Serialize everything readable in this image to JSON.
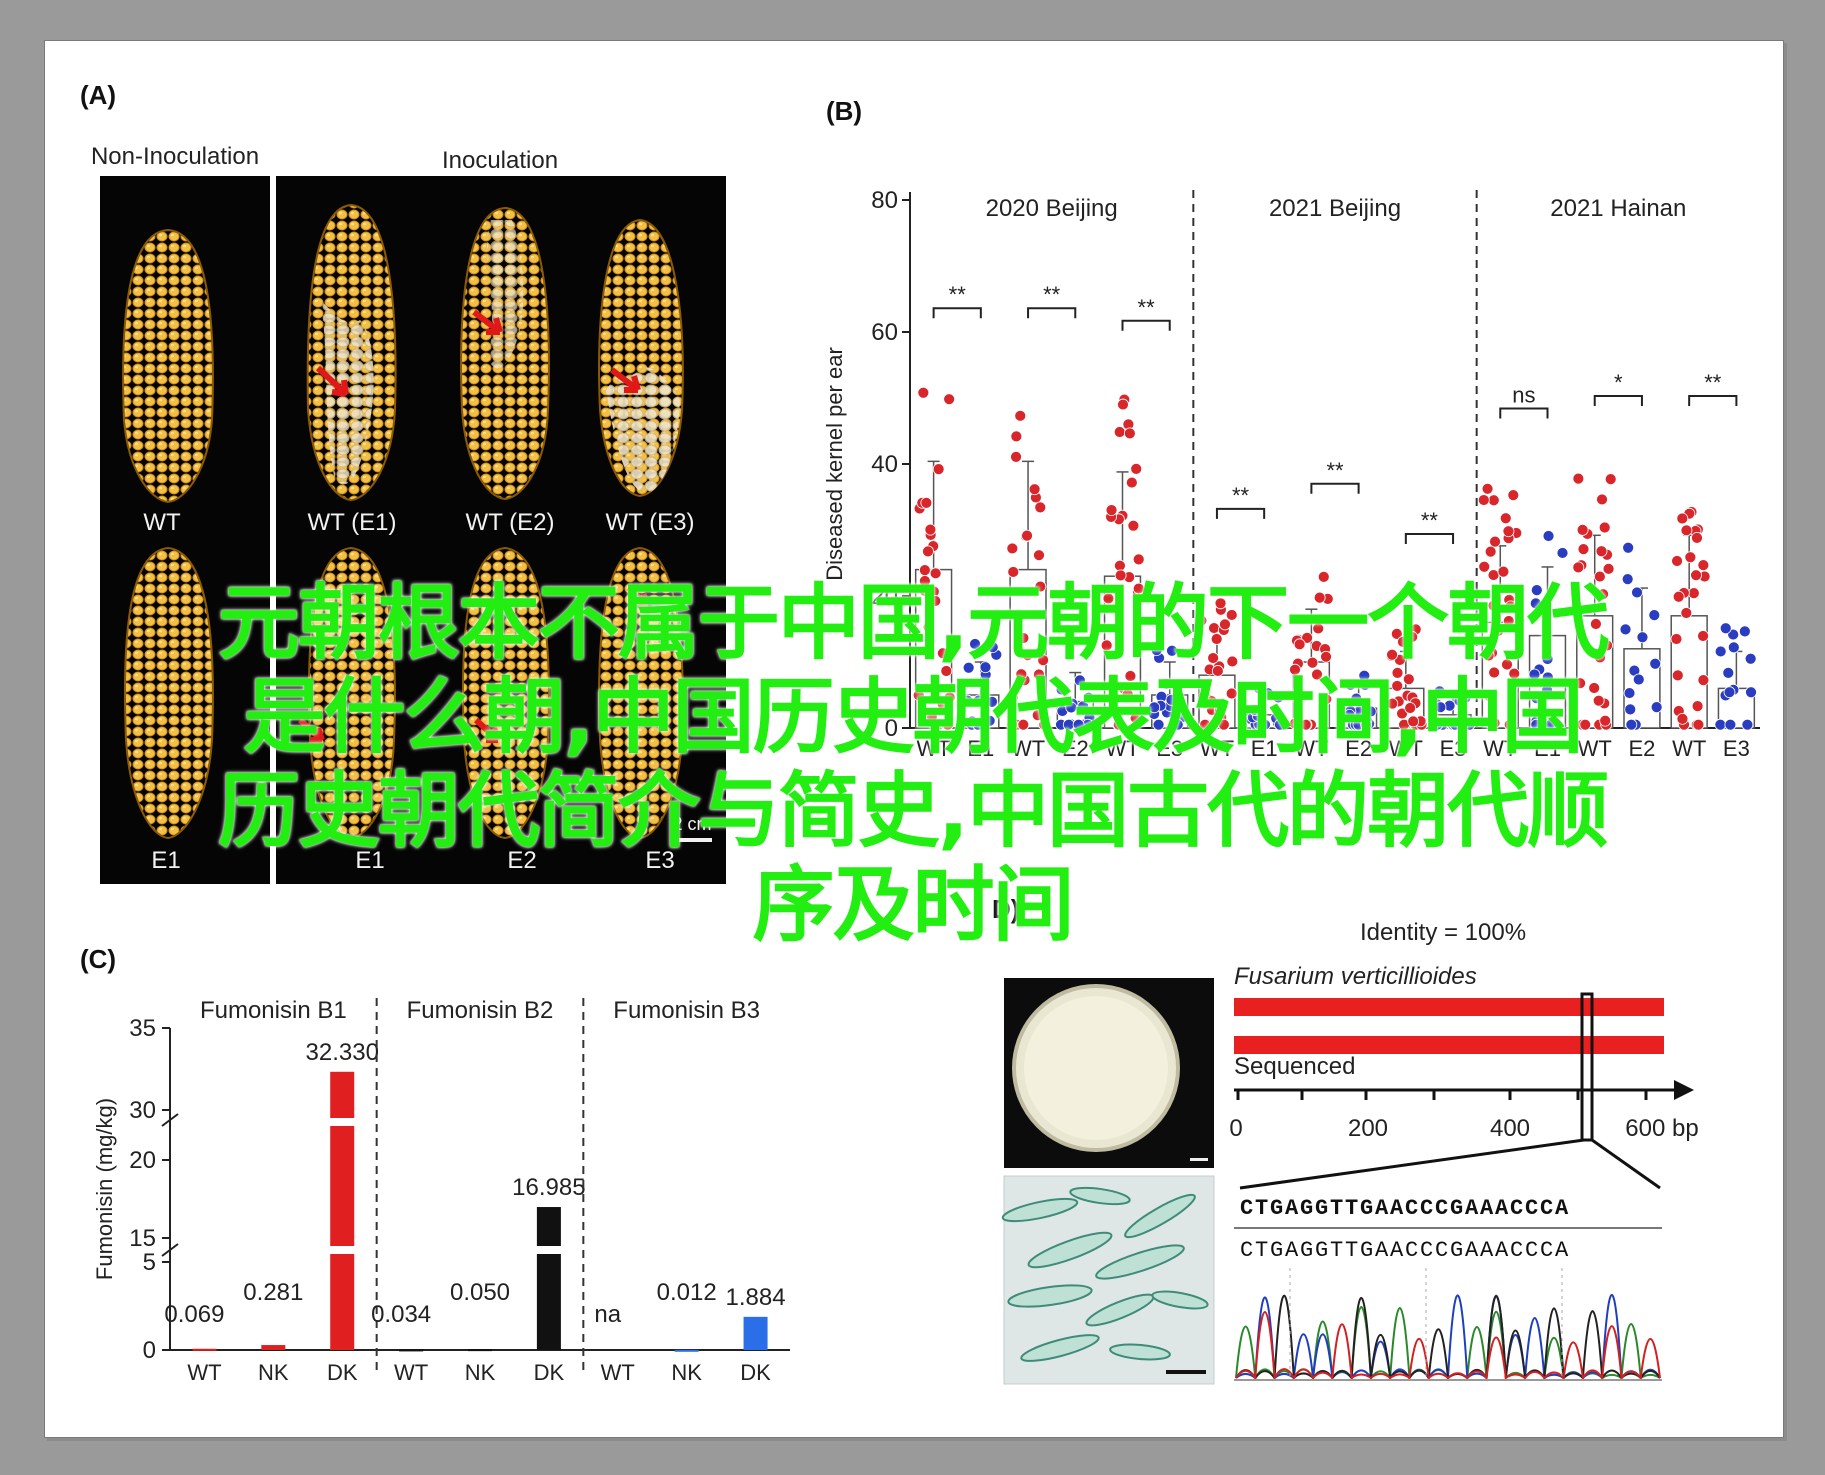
{
  "panels": {
    "a": {
      "label": "(A)",
      "group_left": "Non-Inoculation",
      "group_right": "Inoculation",
      "top_row": [
        "WT",
        "WT (E1)",
        "WT (E2)",
        "WT (E3)"
      ],
      "bottom_row": [
        "E1",
        "E1",
        "E2",
        "E3"
      ],
      "scale_bar": "2 cm"
    },
    "b": {
      "label": "(B)"
    },
    "c": {
      "label": "(C)"
    },
    "d": {
      "label": "D)",
      "identity": "Identity = 100%",
      "species": "Fusarium verticillioides",
      "sequenced": "Sequenced",
      "axis_ticks": [
        "0",
        "200",
        "400",
        "600 bp"
      ],
      "seq1": "CTGAGGTTGAACCCGAAACCCA",
      "seq2": "CTGAGGTTGAACCCGAAACCCA",
      "chromatogram_colors": [
        "#2a8a2a",
        "#1f3fbf",
        "#222222",
        "#d42020"
      ]
    }
  },
  "chart_data": [
    {
      "type": "bar",
      "ylabel": "Diseased kernel per ear",
      "ylim": [
        0,
        80
      ],
      "yticks": [
        "0",
        "20",
        "40",
        "60",
        "80"
      ],
      "groups": [
        {
          "name": "2020 Beijing",
          "categories": [
            "WT",
            "E1",
            "WT",
            "E2",
            "WT",
            "E3"
          ],
          "means": [
            24,
            5,
            24,
            4,
            23,
            5
          ],
          "significance": [
            "**",
            "**",
            "**"
          ]
        },
        {
          "name": "2021 Beijing",
          "categories": [
            "WT",
            "E1",
            "WT",
            "E2",
            "WT",
            "E3"
          ],
          "means": [
            8,
            2,
            10,
            3,
            6,
            2
          ],
          "significance": [
            "**",
            "**",
            "**"
          ]
        },
        {
          "name": "2021 Hainan",
          "categories": [
            "WT",
            "E1",
            "WT",
            "E2",
            "WT",
            "E3"
          ],
          "means": [
            16,
            14,
            17,
            12,
            17,
            6
          ],
          "significance": [
            "ns",
            "*",
            "**"
          ]
        }
      ],
      "series_colors": {
        "WT": "#d8262b",
        "mutant": "#2a3cc0"
      }
    },
    {
      "type": "bar",
      "ylabel": "Fumonisin (mg/kg)",
      "ylim": [
        0,
        35
      ],
      "yticks": [
        "0",
        "5",
        "15",
        "20",
        "30",
        "35"
      ],
      "groups": [
        {
          "name": "Fumonisin B1",
          "categories": [
            "WT",
            "NK",
            "DK"
          ],
          "values": [
            0.069,
            0.281,
            32.33
          ],
          "labels": [
            "0.069",
            "0.281",
            "32.330"
          ],
          "color": "#e02020"
        },
        {
          "name": "Fumonisin B2",
          "categories": [
            "WT",
            "NK",
            "DK"
          ],
          "values": [
            0.034,
            0.05,
            16.985
          ],
          "labels": [
            "0.034",
            "0.050",
            "16.985"
          ],
          "color": "#111111"
        },
        {
          "name": "Fumonisin B3",
          "categories": [
            "WT",
            "NK",
            "DK"
          ],
          "values": [
            null,
            0.012,
            1.884
          ],
          "labels": [
            "na",
            "0.012",
            "1.884"
          ],
          "color": "#2a6ee8"
        }
      ]
    }
  ],
  "overlay": {
    "line1": "元朝根本不属于中国,元朝的下一个朝代",
    "line2": "是什么朝,中国历史朝代表及时间,中国",
    "line3": "历史朝代简介与简史,中国古代的朝代顺",
    "line4": "序及时间"
  }
}
